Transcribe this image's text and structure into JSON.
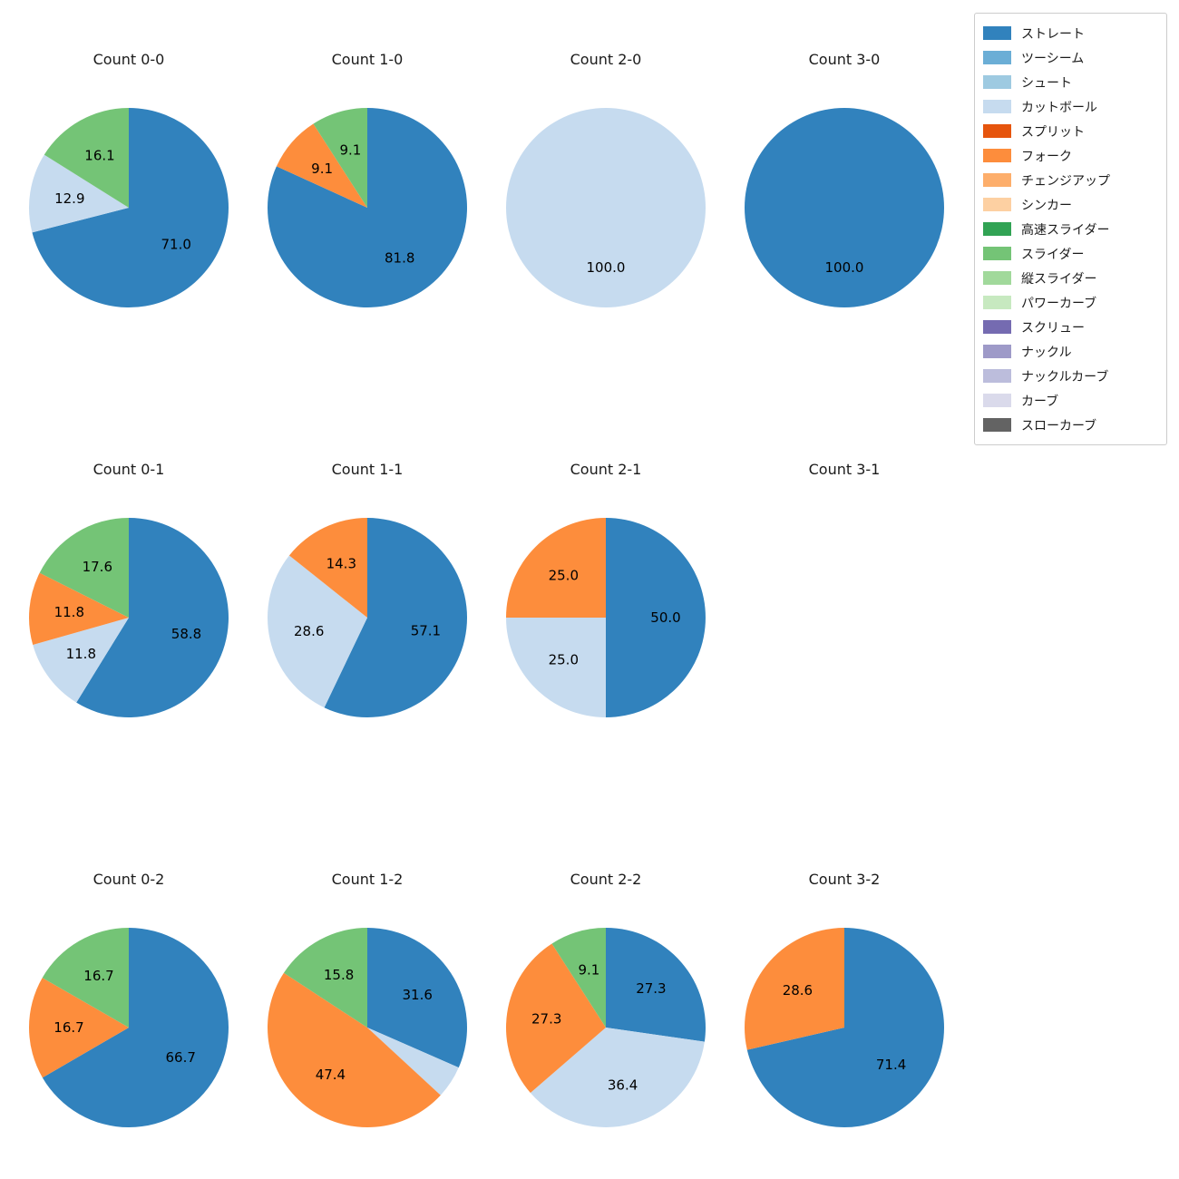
{
  "page": {
    "background": "#ffffff",
    "description_titles": [
      "Count 0-0",
      "Count 1-0",
      "Count 2-0",
      "Count 3-0",
      "Count 0-1",
      "Count 1-1",
      "Count 2-1",
      "Count 3-1",
      "Count 0-2",
      "Count 1-2",
      "Count 2-2",
      "Count 3-2"
    ]
  },
  "legend": {
    "items": [
      {
        "label": "ストレート",
        "color": "#3182bd"
      },
      {
        "label": "ツーシーム",
        "color": "#6baed6"
      },
      {
        "label": "シュート",
        "color": "#9ecae1"
      },
      {
        "label": "カットボール",
        "color": "#c6dbef"
      },
      {
        "label": "スプリット",
        "color": "#e6550d"
      },
      {
        "label": "フォーク",
        "color": "#fd8d3c"
      },
      {
        "label": "チェンジアップ",
        "color": "#fdae6b"
      },
      {
        "label": "シンカー",
        "color": "#fdd0a2"
      },
      {
        "label": "高速スライダー",
        "color": "#31a354"
      },
      {
        "label": "スライダー",
        "color": "#74c476"
      },
      {
        "label": "縦スライダー",
        "color": "#a1d99b"
      },
      {
        "label": "パワーカーブ",
        "color": "#c7e9c0"
      },
      {
        "label": "スクリュー",
        "color": "#756bb1"
      },
      {
        "label": "ナックル",
        "color": "#9e9ac8"
      },
      {
        "label": "ナックルカーブ",
        "color": "#bcbddc"
      },
      {
        "label": "カーブ",
        "color": "#dadaeb"
      },
      {
        "label": "スローカーブ",
        "color": "#636363"
      }
    ]
  },
  "chart_data": [
    {
      "type": "pie",
      "title": "Count 0-0",
      "start_angle": 90,
      "direction": "clockwise",
      "slices": [
        {
          "label": "ストレート",
          "value": 71.0,
          "text": "71.0"
        },
        {
          "label": "カットボール",
          "value": 12.9,
          "text": "12.9"
        },
        {
          "label": "スライダー",
          "value": 16.1,
          "text": "16.1"
        }
      ]
    },
    {
      "type": "pie",
      "title": "Count 1-0",
      "start_angle": 90,
      "direction": "clockwise",
      "slices": [
        {
          "label": "ストレート",
          "value": 81.8,
          "text": "81.8"
        },
        {
          "label": "フォーク",
          "value": 9.1,
          "text": "9.1"
        },
        {
          "label": "スライダー",
          "value": 9.1,
          "text": "9.1"
        }
      ]
    },
    {
      "type": "pie",
      "title": "Count 2-0",
      "start_angle": 90,
      "direction": "clockwise",
      "slices": [
        {
          "label": "カットボール",
          "value": 100.0,
          "text": "100.0"
        }
      ]
    },
    {
      "type": "pie",
      "title": "Count 3-0",
      "start_angle": 90,
      "direction": "clockwise",
      "slices": [
        {
          "label": "ストレート",
          "value": 100.0,
          "text": "100.0"
        }
      ]
    },
    {
      "type": "pie",
      "title": "Count 0-1",
      "start_angle": 90,
      "direction": "clockwise",
      "slices": [
        {
          "label": "ストレート",
          "value": 58.8,
          "text": "58.8"
        },
        {
          "label": "カットボール",
          "value": 11.8,
          "text": "11.8"
        },
        {
          "label": "フォーク",
          "value": 11.8,
          "text": "11.8"
        },
        {
          "label": "スライダー",
          "value": 17.6,
          "text": "17.6"
        }
      ]
    },
    {
      "type": "pie",
      "title": "Count 1-1",
      "start_angle": 90,
      "direction": "clockwise",
      "slices": [
        {
          "label": "ストレート",
          "value": 57.1,
          "text": "57.1"
        },
        {
          "label": "カットボール",
          "value": 28.6,
          "text": "28.6"
        },
        {
          "label": "フォーク",
          "value": 14.3,
          "text": "14.3"
        }
      ]
    },
    {
      "type": "pie",
      "title": "Count 2-1",
      "start_angle": 90,
      "direction": "clockwise",
      "slices": [
        {
          "label": "ストレート",
          "value": 50.0,
          "text": "50.0"
        },
        {
          "label": "カットボール",
          "value": 25.0,
          "text": "25.0"
        },
        {
          "label": "フォーク",
          "value": 25.0,
          "text": "25.0"
        }
      ]
    },
    {
      "type": "pie",
      "title": "Count 3-1",
      "start_angle": 90,
      "direction": "clockwise",
      "slices": []
    },
    {
      "type": "pie",
      "title": "Count 0-2",
      "start_angle": 90,
      "direction": "clockwise",
      "slices": [
        {
          "label": "ストレート",
          "value": 66.7,
          "text": "66.7"
        },
        {
          "label": "フォーク",
          "value": 16.7,
          "text": "16.7"
        },
        {
          "label": "スライダー",
          "value": 16.7,
          "text": "16.7"
        }
      ]
    },
    {
      "type": "pie",
      "title": "Count 1-2",
      "start_angle": 90,
      "direction": "clockwise",
      "slices": [
        {
          "label": "ストレート",
          "value": 31.6,
          "text": "31.6"
        },
        {
          "label": "カットボール",
          "value": 5.3,
          "text": ""
        },
        {
          "label": "フォーク",
          "value": 47.4,
          "text": "47.4"
        },
        {
          "label": "スライダー",
          "value": 15.8,
          "text": "15.8"
        }
      ]
    },
    {
      "type": "pie",
      "title": "Count 2-2",
      "start_angle": 90,
      "direction": "clockwise",
      "slices": [
        {
          "label": "ストレート",
          "value": 27.3,
          "text": "27.3"
        },
        {
          "label": "カットボール",
          "value": 36.4,
          "text": "36.4"
        },
        {
          "label": "フォーク",
          "value": 27.3,
          "text": "27.3"
        },
        {
          "label": "スライダー",
          "value": 9.1,
          "text": "9.1"
        }
      ]
    },
    {
      "type": "pie",
      "title": "Count 3-2",
      "start_angle": 90,
      "direction": "clockwise",
      "slices": [
        {
          "label": "ストレート",
          "value": 71.4,
          "text": "71.4"
        },
        {
          "label": "フォーク",
          "value": 28.6,
          "text": "28.6"
        }
      ]
    }
  ]
}
